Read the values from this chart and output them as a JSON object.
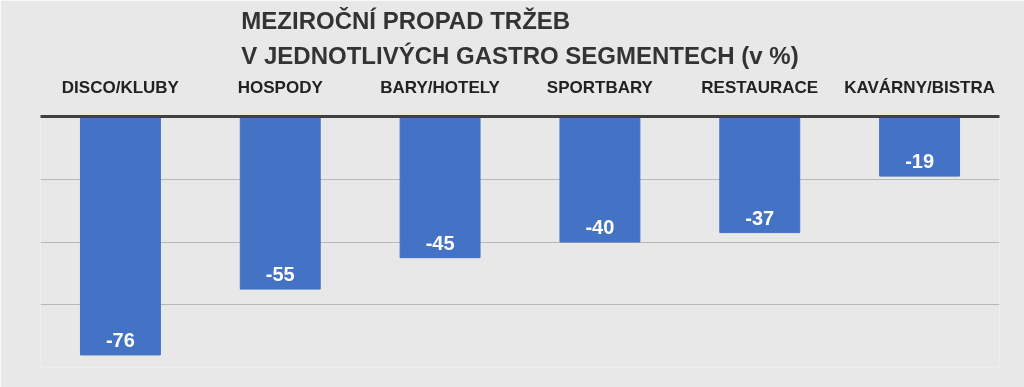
{
  "chart_data": {
    "type": "bar",
    "title": "MEZIROČNÍ PROPAD TRŽEB\nV JEDNOTLIVÝCH GASTRO SEGMENTECH (v %)",
    "categories": [
      "DISCO/KLUBY",
      "HOSPODY",
      "BARY/HOTELY",
      "SPORTBARY",
      "RESTAURACE",
      "KAVÁRNY/BISTRA"
    ],
    "values": [
      -76,
      -55,
      -45,
      -40,
      -37,
      -19
    ],
    "color": "#4472c4",
    "ylim": [
      -80,
      0
    ],
    "yticks": [
      {
        "value": 0,
        "label": null
      },
      {
        "value": -20,
        "label": null
      },
      {
        "value": -40,
        "label": null
      },
      {
        "value": -60,
        "label": null
      },
      {
        "value": -80,
        "label": null
      }
    ],
    "grid": "y",
    "tick_labels": "x",
    "data_labels": true
  }
}
